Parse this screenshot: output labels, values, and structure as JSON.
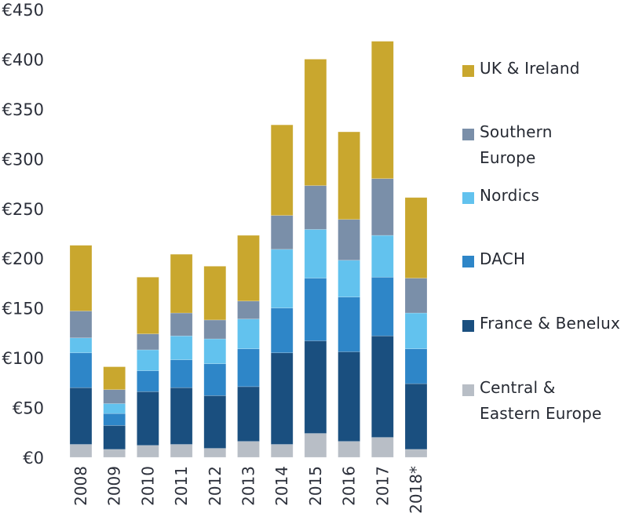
{
  "chart_data": {
    "type": "bar",
    "stacked": true,
    "title": "",
    "xlabel": "",
    "ylabel": "",
    "ylim": [
      0,
      450
    ],
    "yticks": [
      0,
      50,
      100,
      150,
      200,
      250,
      300,
      350,
      400,
      450
    ],
    "ytick_labels": [
      "€0",
      "€50",
      "€100",
      "€150",
      "€200",
      "€250",
      "€300",
      "€350",
      "€400",
      "€450"
    ],
    "grid": false,
    "legend_position": "right",
    "categories": [
      "2008",
      "2009",
      "2010",
      "2011",
      "2012",
      "2013",
      "2014",
      "2015",
      "2016",
      "2017",
      "2018*"
    ],
    "series": [
      {
        "name": "Central & Eastern Europe",
        "color": "#b8bec6",
        "values": [
          13,
          8,
          12,
          13,
          9,
          16,
          13,
          24,
          16,
          20,
          8
        ]
      },
      {
        "name": "France & Benelux",
        "color": "#1a4f7f",
        "values": [
          57,
          24,
          54,
          57,
          53,
          55,
          92,
          93,
          90,
          102,
          66
        ]
      },
      {
        "name": "DACH",
        "color": "#2e86c8",
        "values": [
          35,
          12,
          21,
          28,
          32,
          38,
          45,
          63,
          55,
          59,
          35
        ]
      },
      {
        "name": "Nordics",
        "color": "#62c2ee",
        "values": [
          15,
          10,
          21,
          24,
          25,
          30,
          59,
          49,
          37,
          42,
          36
        ]
      },
      {
        "name": "Southern Europe",
        "color": "#7a8fa9",
        "values": [
          27,
          14,
          16,
          23,
          19,
          18,
          34,
          44,
          41,
          57,
          35
        ]
      },
      {
        "name": "UK & Ireland",
        "color": "#c9a72e",
        "values": [
          66,
          23,
          57,
          59,
          54,
          66,
          91,
          127,
          88,
          138,
          81
        ]
      }
    ]
  },
  "legend": {
    "items": [
      {
        "lines": [
          "UK & Ireland"
        ],
        "color": "#c9a72e"
      },
      {
        "lines": [
          "Southern",
          "Europe"
        ],
        "color": "#7a8fa9"
      },
      {
        "lines": [
          "Nordics"
        ],
        "color": "#62c2ee"
      },
      {
        "lines": [
          "DACH"
        ],
        "color": "#2e86c8"
      },
      {
        "lines": [
          "France & Benelux"
        ],
        "color": "#1a4f7f"
      },
      {
        "lines": [
          "Central &",
          "Eastern Europe"
        ],
        "color": "#b8bec6"
      }
    ]
  }
}
